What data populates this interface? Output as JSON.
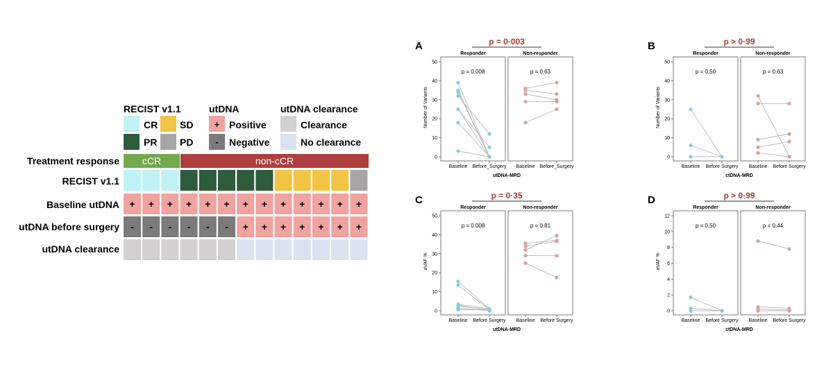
{
  "legend": {
    "recist": {
      "title": "RECIST v1.1",
      "items": [
        {
          "label": "CR",
          "color": "#bff1f6"
        },
        {
          "label": "SD",
          "color": "#f2c446"
        },
        {
          "label": "PR",
          "color": "#2f5b3d"
        },
        {
          "label": "PD",
          "color": "#a8a5a6"
        }
      ]
    },
    "utdna": {
      "title": "utDNA",
      "items": [
        {
          "label": "Positive",
          "symbol": "+",
          "color": "#f0a3a1"
        },
        {
          "label": "Negative",
          "symbol": "-",
          "color": "#7b7b7b"
        }
      ]
    },
    "clearance": {
      "title": "utDNA clearance",
      "items": [
        {
          "label": "Clearance",
          "color": "#d2d0d1"
        },
        {
          "label": "No clearance",
          "color": "#dbe1f1"
        }
      ]
    }
  },
  "heatmap": {
    "rows": [
      {
        "label": "Treatment response"
      },
      {
        "label": "RECIST v1.1"
      },
      {
        "label": "Baseline utDNA"
      },
      {
        "label": "utDNA before surgery"
      },
      {
        "label": "utDNA clearance"
      }
    ],
    "response_groups": [
      {
        "label": "cCR",
        "count": 3,
        "color": "#74a84c"
      },
      {
        "label": "non-cCR",
        "count": 10,
        "color": "#ad3e3e"
      }
    ],
    "recist": [
      "CR",
      "CR",
      "CR",
      "PR",
      "PR",
      "PR",
      "PR",
      "PR",
      "SD",
      "SD",
      "SD",
      "SD",
      "PD"
    ],
    "baseline": [
      "+",
      "+",
      "+",
      "+",
      "+",
      "+",
      "+",
      "+",
      "+",
      "+",
      "+",
      "+",
      "+"
    ],
    "before_surgery": [
      "-",
      "-",
      "-",
      "-",
      "-",
      "-",
      "+",
      "+",
      "+",
      "+",
      "+",
      "+",
      "+"
    ],
    "clearance": [
      "C",
      "C",
      "C",
      "C",
      "C",
      "C",
      "N",
      "N",
      "N",
      "N",
      "N",
      "N",
      "N"
    ],
    "colors": {
      "CR": "#bff1f6",
      "PR": "#2f5b3d",
      "SD": "#f2c446",
      "PD": "#a8a5a6",
      "+": "#f0a3a1",
      "-": "#7b7b7b",
      "C": "#d2d0d1",
      "N": "#dbe1f1"
    }
  },
  "chart_data": [
    {
      "type": "line",
      "panel": "A",
      "overall_p": "p = 0·003",
      "xlabel": "utDNA-MRD",
      "ylabel": "Number of Variants",
      "ylim": [
        0,
        50
      ],
      "yticks": [
        0,
        10,
        20,
        30,
        40,
        50
      ],
      "categories": [
        "Baseline",
        "Before_Surgery"
      ],
      "facets": [
        {
          "name": "Responder",
          "p": "p = 0.008",
          "color": "#7fd3d6",
          "pairs": [
            [
              39,
              0
            ],
            [
              35,
              0
            ],
            [
              34,
              0
            ],
            [
              32,
              12
            ],
            [
              25,
              5
            ],
            [
              25,
              0
            ],
            [
              18,
              0
            ],
            [
              3,
              0
            ]
          ]
        },
        {
          "name": "Non-responder",
          "p": "p = 0.63",
          "color": "#d9a09e",
          "pairs": [
            [
              36,
              39
            ],
            [
              35,
              33
            ],
            [
              33,
              30
            ],
            [
              29,
              29
            ],
            [
              18,
              25
            ]
          ]
        }
      ]
    },
    {
      "type": "line",
      "panel": "B",
      "overall_p": "p > 0·99",
      "xlabel": "ctDNA-MRD",
      "ylabel": "Number of Variants",
      "ylim": [
        0,
        50
      ],
      "yticks": [
        0,
        10,
        20,
        30,
        40,
        50
      ],
      "categories": [
        "Baseline",
        "Before Surgery"
      ],
      "facets": [
        {
          "name": "Responder",
          "p": "p = 0.50",
          "color": "#7fd3d6",
          "pairs": [
            [
              25,
              0
            ],
            [
              6,
              0
            ],
            [
              0,
              0
            ]
          ]
        },
        {
          "name": "Non-responder",
          "p": "p = 0.63",
          "color": "#d9a09e",
          "pairs": [
            [
              32,
              0
            ],
            [
              28,
              28
            ],
            [
              9,
              12
            ],
            [
              5,
              8
            ],
            [
              2,
              0
            ]
          ]
        }
      ]
    },
    {
      "type": "line",
      "panel": "C",
      "overall_p": "p = 0·35",
      "xlabel": "utDNA-MRD",
      "ylabel": "aVAF %",
      "ylim": [
        0,
        50
      ],
      "yticks": [
        0,
        10,
        20,
        30,
        40,
        50
      ],
      "categories": [
        "Baseline",
        "Before Surgery"
      ],
      "facets": [
        {
          "name": "Responder",
          "p": "p = 0.008",
          "color": "#7fd3d6",
          "pairs": [
            [
              15.5,
              1
            ],
            [
              13.5,
              0.5
            ],
            [
              3.5,
              1
            ],
            [
              3,
              0
            ],
            [
              2.5,
              0.5
            ],
            [
              1.5,
              0
            ],
            [
              0.5,
              0.5
            ]
          ]
        },
        {
          "name": "Non-responder",
          "p": "p = 0.81",
          "color": "#d9a09e",
          "pairs": [
            [
              35.5,
              37
            ],
            [
              34,
              36.5
            ],
            [
              32,
              39.5
            ],
            [
              29,
              29
            ],
            [
              25,
              17.5
            ]
          ]
        }
      ]
    },
    {
      "type": "line",
      "panel": "D",
      "overall_p": "p > 0·99",
      "xlabel": "ctDNA-MRD",
      "ylabel": "aVAF %",
      "ylim": [
        0,
        12
      ],
      "yticks": [
        0,
        2,
        4,
        6,
        8,
        10,
        12
      ],
      "categories": [
        "Baseline",
        "Before Surgery"
      ],
      "facets": [
        {
          "name": "Responder",
          "p": "p = 0.50",
          "color": "#7fd3d6",
          "pairs": [
            [
              1.7,
              0
            ],
            [
              0.3,
              0
            ],
            [
              0,
              0
            ]
          ]
        },
        {
          "name": "Non-responder",
          "p": "p = 0.44",
          "color": "#d9a09e",
          "pairs": [
            [
              8.8,
              7.8
            ],
            [
              0.5,
              0.3
            ],
            [
              0.2,
              0.1
            ],
            [
              0,
              0
            ]
          ]
        }
      ]
    }
  ]
}
